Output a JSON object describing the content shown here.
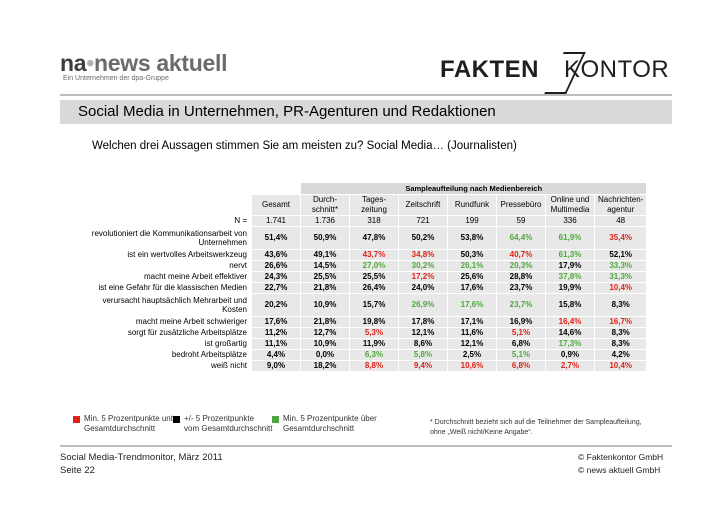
{
  "logos": {
    "na_part1": "na",
    "na_dot": "•",
    "na_part2": "news aktuell",
    "na_tagline": "Ein Unternehmen der dpa-Gruppe",
    "fk_part1": "FAKTEN",
    "fk_part2": "KONTOR"
  },
  "title": "Social Media in Unternehmen, PR-Agenturen und Redaktionen",
  "question": "Welchen drei Aussagen stimmen Sie am meisten zu? Social Media… (Journalisten)",
  "table": {
    "group_header": "Sampleaufteilung nach Medienbereich",
    "columns": [
      "Gesamt",
      "Durch-\nschnitt*",
      "Tages-\nzeitung",
      "Zeitschrift",
      "Rundfunk",
      "Pressebüro",
      "Online und\nMultimedia",
      "Nachrichten-\nagentur"
    ],
    "n_label": "N =",
    "n_values": [
      "1.741",
      "1.736",
      "318",
      "721",
      "199",
      "59",
      "336",
      "48"
    ],
    "rows": [
      {
        "label": "revolutioniert die Kommunikationsarbeit von Unternehmen",
        "values": [
          "51,4%",
          "50,9%",
          "47,8%",
          "50,2%",
          "53,8%",
          "64,4%",
          "61,9%",
          "35,4%"
        ],
        "colors": [
          "",
          "",
          "",
          "",
          "",
          "g",
          "g",
          "r"
        ]
      },
      {
        "label": "ist ein wertvolles Arbeitswerkzeug",
        "values": [
          "43,6%",
          "49,1%",
          "43,7%",
          "34,8%",
          "50,3%",
          "40,7%",
          "61,3%",
          "52,1%"
        ],
        "colors": [
          "",
          "",
          "r",
          "r",
          "",
          "r",
          "g",
          ""
        ]
      },
      {
        "label": "nervt",
        "values": [
          "26,6%",
          "14,5%",
          "27,0%",
          "30,2%",
          "26,1%",
          "20,3%",
          "17,9%",
          "33,3%"
        ],
        "colors": [
          "",
          "",
          "g",
          "g",
          "g",
          "g",
          "",
          "g"
        ]
      },
      {
        "label": "macht meine Arbeit effektiver",
        "values": [
          "24,3%",
          "25,5%",
          "25,5%",
          "17,2%",
          "25,6%",
          "28,8%",
          "37,8%",
          "31,3%"
        ],
        "colors": [
          "",
          "",
          "",
          "r",
          "",
          "",
          "g",
          "g"
        ]
      },
      {
        "label": "ist eine Gefahr für die klassischen Medien",
        "values": [
          "22,7%",
          "21,8%",
          "26,4%",
          "24,0%",
          "17,6%",
          "23,7%",
          "19,9%",
          "10,4%"
        ],
        "colors": [
          "",
          "",
          "",
          "",
          "",
          "",
          "",
          "r"
        ]
      },
      {
        "label": "verursacht hauptsächlich Mehrarbeit und Kosten",
        "values": [
          "20,2%",
          "10,9%",
          "15,7%",
          "26,9%",
          "17,6%",
          "23,7%",
          "15,8%",
          "8,3%"
        ],
        "colors": [
          "",
          "",
          "",
          "g",
          "g",
          "g",
          "",
          ""
        ]
      },
      {
        "label": "macht meine Arbeit schwieriger",
        "values": [
          "17,6%",
          "21,8%",
          "19,8%",
          "17,8%",
          "17,1%",
          "16,9%",
          "16,4%",
          "16,7%"
        ],
        "colors": [
          "",
          "",
          "",
          "",
          "",
          "",
          "r",
          "r"
        ]
      },
      {
        "label": "sorgt für zusätzliche Arbeitsplätze",
        "values": [
          "11,2%",
          "12,7%",
          "5,3%",
          "12,1%",
          "11,6%",
          "5,1%",
          "14,6%",
          "8,3%"
        ],
        "colors": [
          "",
          "",
          "r",
          "",
          "",
          "r",
          "",
          ""
        ]
      },
      {
        "label": "ist großartig",
        "values": [
          "11,1%",
          "10,9%",
          "11,9%",
          "8,6%",
          "12,1%",
          "6,8%",
          "17,3%",
          "8,3%"
        ],
        "colors": [
          "",
          "",
          "",
          "",
          "",
          "",
          "g",
          ""
        ]
      },
      {
        "label": "bedroht Arbeitsplätze",
        "values": [
          "4,4%",
          "0,0%",
          "6,3%",
          "5,8%",
          "2,5%",
          "5,1%",
          "0,9%",
          "4,2%"
        ],
        "colors": [
          "",
          "",
          "g",
          "g",
          "",
          "g",
          "",
          ""
        ]
      },
      {
        "label": "weiß nicht",
        "values": [
          "9,0%",
          "18,2%",
          "8,8%",
          "9,4%",
          "10,6%",
          "6,8%",
          "2,7%",
          "10,4%"
        ],
        "colors": [
          "",
          "",
          "r",
          "r",
          "r",
          "r",
          "r",
          "r"
        ]
      }
    ]
  },
  "legend": {
    "red": "Min. 5 Prozentpunkte unter\nGesamtdurchschnitt",
    "black": "+/- 5 Prozentpunkte\nvom Gesamtdurchschnitt",
    "green": "Min. 5 Prozentpunkte über\nGesamtdurchschnitt",
    "colors": {
      "red": "#e0231a",
      "black": "#000000",
      "green": "#4fa83d"
    }
  },
  "note": "* Durchschnitt bezieht sich auf die Teilnehmer der Sampleaufteilung,\nohne „Weiß nicht/Keine Angabe“.",
  "footer": {
    "left1": "Social Media-Trendmonitor, März 2011",
    "left2": "Seite 22",
    "right1": "© Faktenkontor GmbH",
    "right2": "© news aktuell GmbH"
  }
}
